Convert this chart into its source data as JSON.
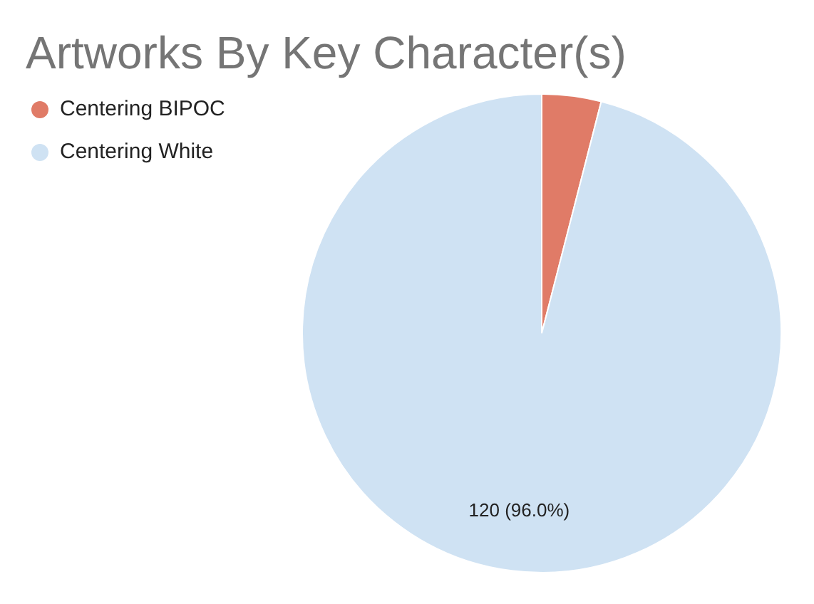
{
  "chart_data": {
    "type": "pie",
    "title": "Artworks By Key Character(s)",
    "categories": [
      "Centering BIPOC",
      "Centering White"
    ],
    "values": [
      5,
      120
    ],
    "colors": [
      "#e07b67",
      "#cfe2f3"
    ],
    "value_labels": [
      null,
      "120 (96.0%)"
    ],
    "legend": "top left"
  }
}
